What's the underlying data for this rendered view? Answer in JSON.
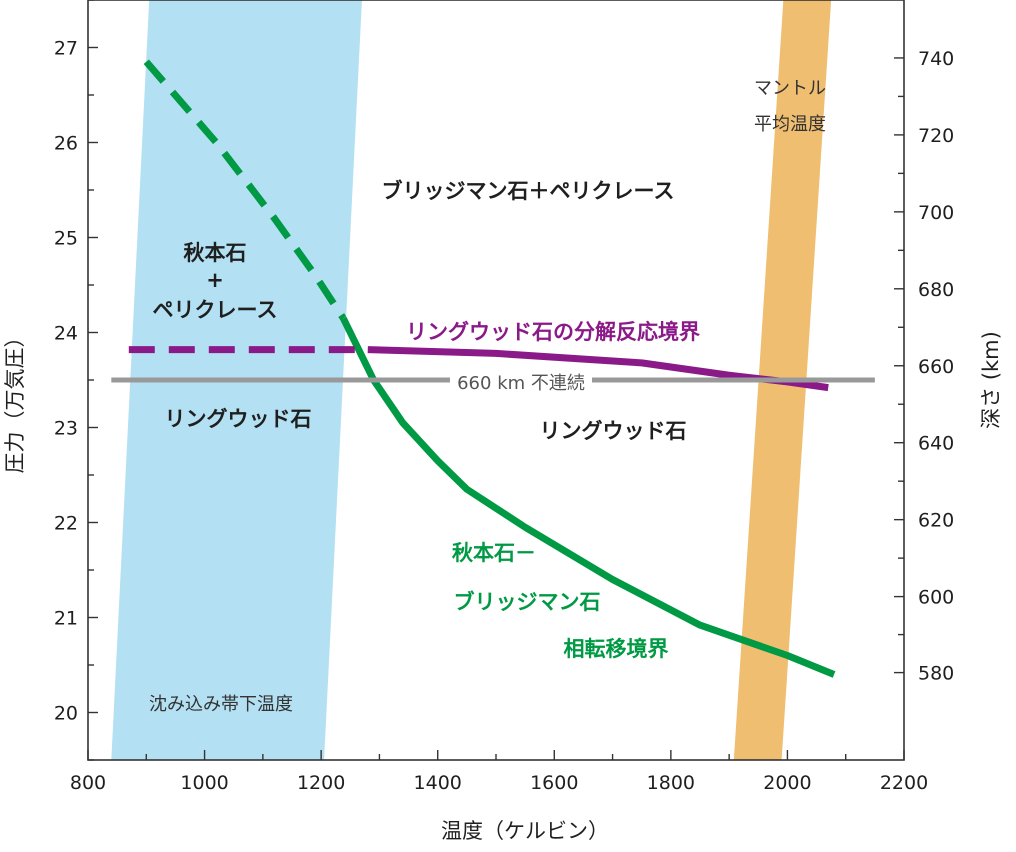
{
  "chart_data": {
    "type": "line",
    "title": "",
    "xlabel": "温度（ケルビン）",
    "ylabel_left": "圧力（万気圧）",
    "ylabel_right": "深さ (km)",
    "xlim": [
      800,
      2200
    ],
    "ylim_left": [
      19.5,
      27.5
    ],
    "x_ticks": [
      800,
      1000,
      1200,
      1400,
      1600,
      1800,
      2000,
      2200
    ],
    "y_ticks_left": [
      20,
      21,
      22,
      23,
      24,
      25,
      26,
      27
    ],
    "y_ticks_right": [
      {
        "label": "580",
        "pressure": 20.42
      },
      {
        "label": "600",
        "pressure": 21.22
      },
      {
        "label": "620",
        "pressure": 22.03
      },
      {
        "label": "640",
        "pressure": 22.84
      },
      {
        "label": "660",
        "pressure": 23.65
      },
      {
        "label": "680",
        "pressure": 24.46
      },
      {
        "label": "700",
        "pressure": 25.27
      },
      {
        "label": "720",
        "pressure": 26.08
      },
      {
        "label": "740",
        "pressure": 26.89
      }
    ],
    "bands": [
      {
        "name": "沈み込み帯下温度",
        "color": "#b3e0f2",
        "polygon": [
          [
            840,
            19.5
          ],
          [
            1205,
            19.5
          ],
          [
            1270,
            27.5
          ],
          [
            905,
            27.5
          ]
        ]
      },
      {
        "name": "マントル平均温度",
        "color": "#f0be70",
        "polygon": [
          [
            1908,
            19.5
          ],
          [
            1990,
            19.5
          ],
          [
            2075,
            27.5
          ],
          [
            1993,
            27.5
          ]
        ]
      }
    ],
    "series": [
      {
        "name": "秋本石－ブリッジマン石相転移境界",
        "color": "#009944",
        "style": "dashed",
        "points": [
          [
            900,
            26.85
          ],
          [
            1020,
            26.0
          ],
          [
            1120,
            25.2
          ],
          [
            1190,
            24.6
          ],
          [
            1238,
            24.15
          ]
        ]
      },
      {
        "name": "秋本石－ブリッジマン石相転移境界",
        "color": "#009944",
        "style": "solid",
        "points": [
          [
            1238,
            24.15
          ],
          [
            1290,
            23.5
          ],
          [
            1340,
            23.05
          ],
          [
            1400,
            22.65
          ],
          [
            1450,
            22.35
          ],
          [
            1550,
            21.95
          ],
          [
            1700,
            21.4
          ],
          [
            1850,
            20.92
          ],
          [
            2000,
            20.6
          ],
          [
            2080,
            20.4
          ]
        ]
      },
      {
        "name": "リングウッド石の分解反応境界",
        "color": "#8b1a89",
        "style": "dashed",
        "points": [
          [
            870,
            23.82
          ],
          [
            1280,
            23.82
          ]
        ]
      },
      {
        "name": "リングウッド石の分解反応境界",
        "color": "#8b1a89",
        "style": "solid",
        "points": [
          [
            1280,
            23.82
          ],
          [
            1500,
            23.78
          ],
          [
            1750,
            23.68
          ],
          [
            1900,
            23.55
          ],
          [
            2000,
            23.48
          ],
          [
            2070,
            23.42
          ]
        ]
      },
      {
        "name": "660 km 不連続",
        "color": "#999999",
        "style": "solid",
        "points": [
          [
            840,
            23.5
          ],
          [
            2150,
            23.5
          ]
        ]
      }
    ],
    "annotations": {
      "region_upper_right": "ブリッジマン石＋ペリクレース",
      "region_upper_left_line1": "秋本石",
      "region_upper_left_line2": "+",
      "region_upper_left_line3": "ペリクレース",
      "region_lower_left": "リングウッド石",
      "region_lower_right": "リングウッド石",
      "decomposition_label": "リングウッド石の分解反応境界",
      "discontinuity_label": "660 km 不連続",
      "green_label_line1": "秋本石－",
      "green_label_line2": "ブリッジマン石",
      "green_label_line3": "相転移境界",
      "cold_band_label": "沈み込み帯下温度",
      "mantle_label_line1": "マントル",
      "mantle_label_line2": "平均温度"
    }
  }
}
